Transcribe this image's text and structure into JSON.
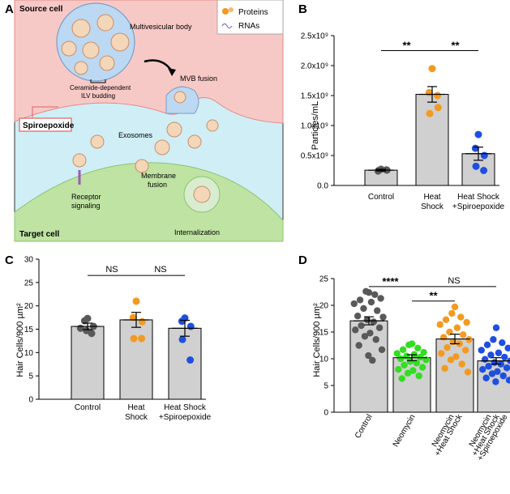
{
  "colors": {
    "gray": "#595959",
    "orange": "#f29a21",
    "blue": "#1f4fe0",
    "green": "#33dd22",
    "bar": "#d0d0d0",
    "cell_pink": "#f7c9c6",
    "cell_green": "#bfe3a3",
    "extracell": "#cfeef6"
  },
  "panel_a": {
    "label": "A",
    "source_cell": "Source cell",
    "target_cell": "Target cell",
    "mvb": "Multivesicular body",
    "mvb_fusion": "MVB fusion",
    "ceramide_line1": "Ceramide-dependent",
    "ceramide_line2": "ILV budding",
    "inhibitor": "Spiroepoxide",
    "exosomes": "Exosomes",
    "membrane_line1": "Membrane",
    "membrane_line2": "fusion",
    "receptor_line1": "Receptor",
    "receptor_line2": "signaling",
    "internalization": "Internalization",
    "legend": [
      {
        "label": "Proteins",
        "icon": "protein-icon"
      },
      {
        "label": "RNAs",
        "icon": "rna-icon"
      }
    ]
  },
  "chart_data": [
    {
      "panel": "B",
      "type": "bar",
      "title": "",
      "ylabel": "Particles/mL",
      "ylim": [
        0,
        2500000000.0
      ],
      "yticks": [
        {
          "v": 0,
          "label": "0.0"
        },
        {
          "v": 500000000.0,
          "label": "0.5x10⁹"
        },
        {
          "v": 1000000000.0,
          "label": "1.0x10⁹"
        },
        {
          "v": 1500000000.0,
          "label": "1.5x10⁹"
        },
        {
          "v": 2000000000.0,
          "label": "2.0x10⁹"
        },
        {
          "v": 2500000000.0,
          "label": "2.5x10⁹"
        }
      ],
      "categories": [
        {
          "l1": "Control",
          "l2": ""
        },
        {
          "l1": "Heat",
          "l2": "Shock"
        },
        {
          "l1": "Heat Shock",
          "l2": "+Spiroepoxide"
        }
      ],
      "values": [
        255000000.0,
        1520000000.0,
        530000000.0
      ],
      "sem": [
        15000000.0,
        130000000.0,
        110000000.0
      ],
      "points": [
        [
          270000000.0,
          240000000.0,
          255000000.0,
          250000000.0,
          260000000.0
        ],
        [
          1950000000.0,
          1550000000.0,
          1300000000.0,
          1200000000.0,
          1500000000.0
        ],
        [
          850000000.0,
          620000000.0,
          500000000.0,
          320000000.0,
          250000000.0
        ]
      ],
      "point_colors": [
        "gray",
        "orange",
        "blue"
      ],
      "significance": [
        {
          "from": 0,
          "to": 1,
          "y": 2250000000.0,
          "label": "**"
        },
        {
          "from": 1,
          "to": 2,
          "y": 2250000000.0,
          "label": "**"
        }
      ]
    },
    {
      "panel": "C",
      "type": "bar",
      "ylabel": "Hair Cells/900 µm²",
      "ylim": [
        0,
        30
      ],
      "yticks": [
        {
          "v": 0,
          "label": "0"
        },
        {
          "v": 5,
          "label": "5"
        },
        {
          "v": 10,
          "label": "10"
        },
        {
          "v": 15,
          "label": "15"
        },
        {
          "v": 20,
          "label": "20"
        },
        {
          "v": 25,
          "label": "25"
        },
        {
          "v": 30,
          "label": "30"
        }
      ],
      "categories": [
        {
          "l1": "Control",
          "l2": ""
        },
        {
          "l1": "Heat",
          "l2": "Shock"
        },
        {
          "l1": "Heat Shock",
          "l2": "+Spiroepoxide"
        }
      ],
      "values": [
        15.6,
        17.0,
        15.2
      ],
      "sem": [
        0.7,
        1.6,
        1.7
      ],
      "points": [
        [
          17.3,
          16.8,
          15.6,
          14.7,
          14.1,
          15.2
        ],
        [
          21.0,
          17.5,
          16.6,
          13.0,
          13.0
        ],
        [
          17.4,
          16.7,
          15.6,
          12.8,
          8.4
        ]
      ],
      "point_colors": [
        "gray",
        "orange",
        "blue"
      ],
      "significance": [
        {
          "from": 0,
          "to": 1,
          "y": 26.5,
          "label": "NS"
        },
        {
          "from": 1,
          "to": 2,
          "y": 26.5,
          "label": "NS"
        }
      ]
    },
    {
      "panel": "D",
      "type": "bar",
      "ylabel": "Hair Cells/900 µm²",
      "ylim": [
        0,
        25
      ],
      "yticks": [
        {
          "v": 0,
          "label": "0"
        },
        {
          "v": 5,
          "label": "5"
        },
        {
          "v": 10,
          "label": "10"
        },
        {
          "v": 15,
          "label": "15"
        },
        {
          "v": 20,
          "label": "20"
        },
        {
          "v": 25,
          "label": "25"
        }
      ],
      "categories": [
        {
          "lines": [
            "Control"
          ]
        },
        {
          "lines": [
            "Neomycin"
          ]
        },
        {
          "lines": [
            "Neomycin",
            "+Heat Shock"
          ]
        },
        {
          "lines": [
            "Neomycin",
            "+Heat Shock",
            "+Spiroepoxide"
          ]
        }
      ],
      "values": [
        17.1,
        10.2,
        13.7,
        9.6
      ],
      "sem": [
        0.75,
        0.55,
        0.9,
        0.6
      ],
      "points": [
        [
          22.4,
          22.6,
          22.0,
          21.0,
          21.3,
          20.3,
          20.6,
          19.4,
          19.0,
          18.0,
          17.8,
          17.3,
          16.9,
          16.2,
          15.8,
          15.4,
          14.8,
          14.2,
          13.6,
          12.5,
          11.7,
          10.6,
          9.7
        ],
        [
          12.8,
          12.6,
          12.0,
          11.7,
          11.2,
          11.0,
          10.8,
          10.5,
          10.3,
          10.0,
          9.8,
          9.5,
          9.2,
          8.8,
          8.4,
          8.0,
          7.8,
          7.3,
          6.8,
          6.3
        ],
        [
          19.7,
          18.5,
          17.8,
          17.3,
          16.8,
          16.4,
          15.8,
          15.0,
          14.5,
          14.0,
          13.6,
          13.2,
          12.8,
          12.1,
          11.6,
          11.0,
          10.4,
          9.8,
          9.0,
          8.2,
          7.5
        ],
        [
          15.8,
          13.6,
          13.0,
          12.6,
          12.0,
          11.6,
          11.1,
          10.7,
          10.3,
          9.9,
          9.6,
          9.3,
          9.0,
          8.6,
          8.3,
          8.0,
          7.6,
          7.2,
          6.8,
          6.4,
          6.0,
          5.7
        ]
      ],
      "point_colors": [
        "gray",
        "green",
        "orange",
        "blue"
      ],
      "significance": [
        {
          "from": 0,
          "to": 1,
          "y": 23.5,
          "label": "****",
          "bold": true
        },
        {
          "from": 1,
          "to": 3,
          "y": 23.5,
          "label": "NS",
          "bold": false
        },
        {
          "from": 1,
          "to": 2,
          "y": 20.8,
          "label": "**",
          "bold": true
        }
      ]
    }
  ]
}
